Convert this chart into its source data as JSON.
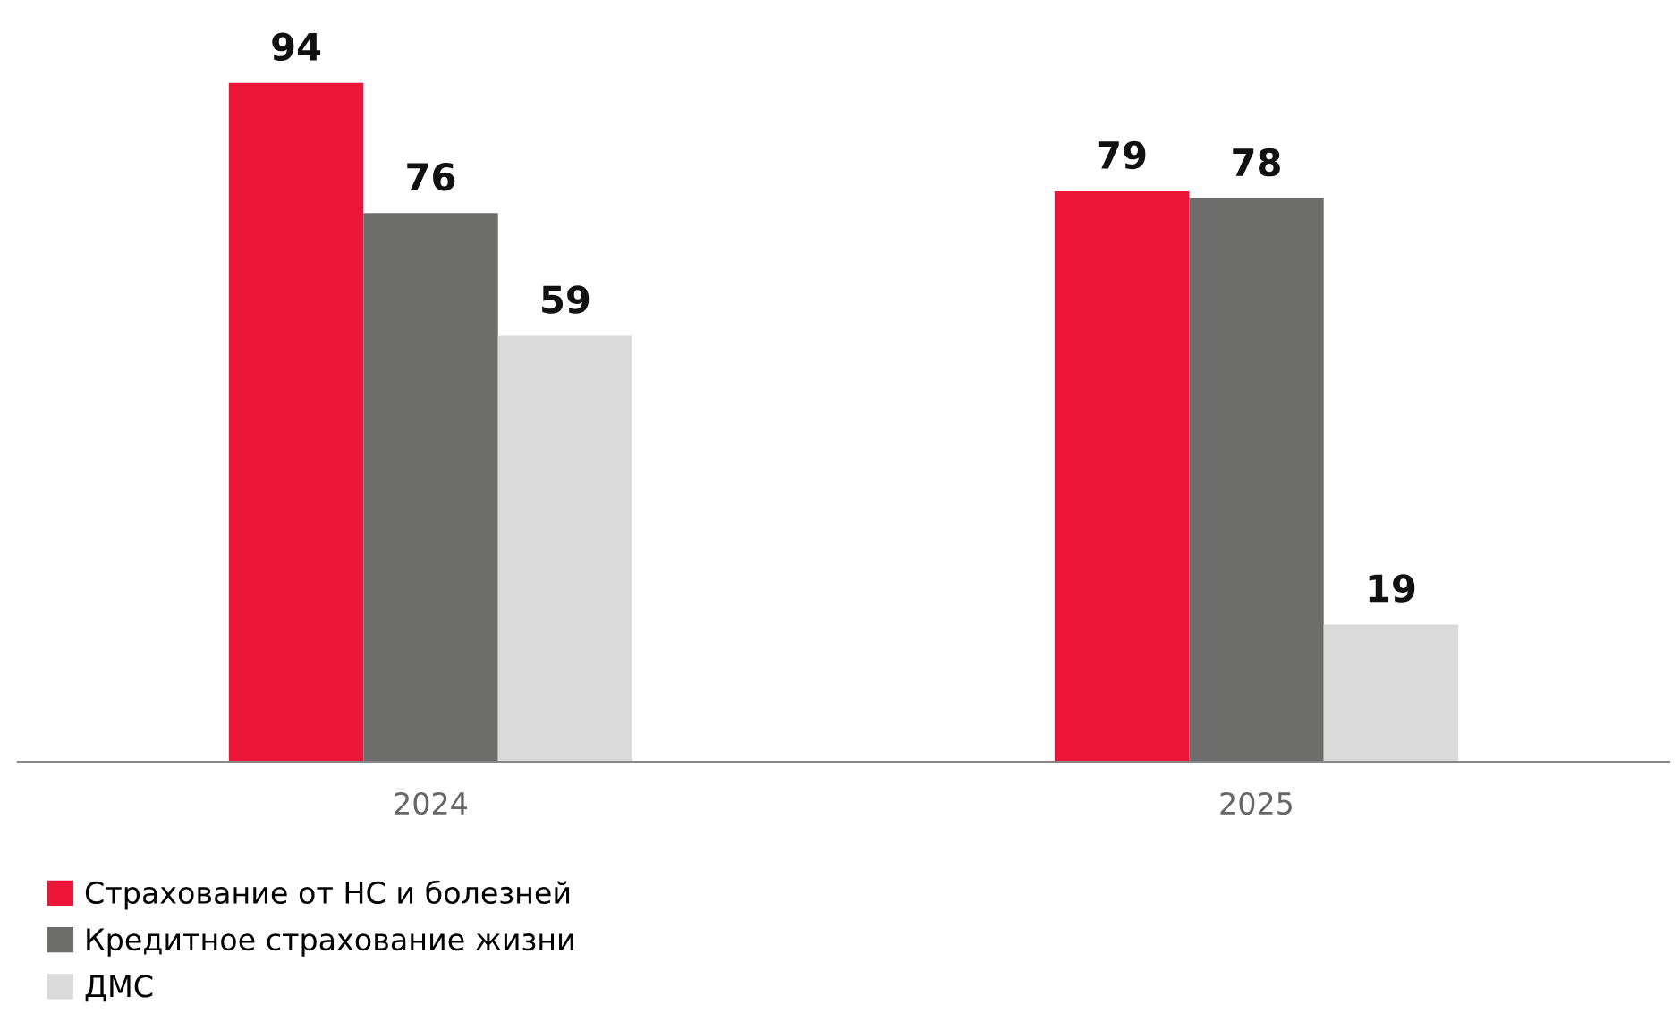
{
  "chart_data": {
    "type": "bar",
    "categories": [
      "2024",
      "2025"
    ],
    "series": [
      {
        "name": "Страхование от НС и болезней",
        "color": "#ed1639",
        "values": [
          94,
          79
        ]
      },
      {
        "name": "Кредитное страхование жизни",
        "color": "#6d6e6c",
        "values": [
          76,
          78
        ]
      },
      {
        "name": "ДМС",
        "color": "#dadada",
        "values": [
          59,
          19
        ]
      }
    ],
    "data_labels": true,
    "legend": "bottom left",
    "tick_labels": "x",
    "grid": false
  }
}
